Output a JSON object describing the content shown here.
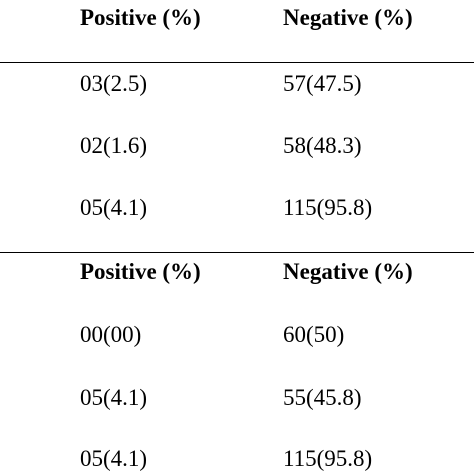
{
  "section1": {
    "header": {
      "positive": "Positive (%)",
      "negative": "Negative (%)"
    },
    "rows": [
      {
        "positive": "03(2.5)",
        "negative": "57(47.5)"
      },
      {
        "positive": "02(1.6)",
        "negative": "58(48.3)"
      },
      {
        "positive": "05(4.1)",
        "negative": "115(95.8)"
      }
    ]
  },
  "section2": {
    "header": {
      "positive": "Positive (%)",
      "negative": "Negative (%)"
    },
    "rows": [
      {
        "positive": "00(00)",
        "negative": "60(50)"
      },
      {
        "positive": "05(4.1)",
        "negative": "55(45.8)"
      },
      {
        "positive": "05(4.1)",
        "negative": "115(95.8)"
      }
    ]
  }
}
